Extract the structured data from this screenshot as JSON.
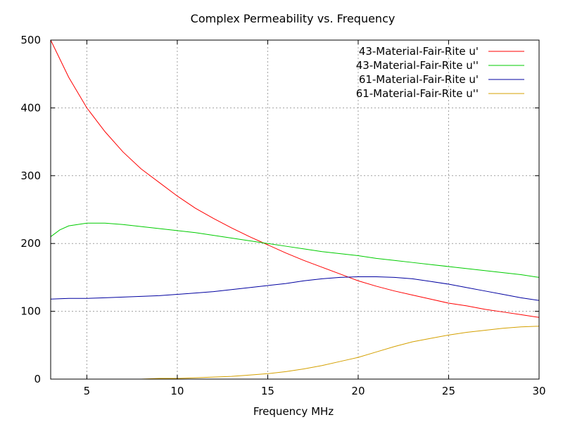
{
  "chart_data": {
    "type": "line",
    "title": "Complex Permeability vs. Frequency",
    "xlabel": "Frequency MHz",
    "ylabel": "",
    "xlim": [
      3,
      30
    ],
    "ylim": [
      0,
      500
    ],
    "xticks": [
      5,
      10,
      15,
      20,
      25,
      30
    ],
    "yticks": [
      0,
      100,
      200,
      300,
      400,
      500
    ],
    "grid": true,
    "legend_position": "top-right",
    "series": [
      {
        "name": "43-Material-Fair-Rite u'",
        "color": "#ff0000",
        "x": [
          3,
          4,
          5,
          6,
          7,
          8,
          9,
          10,
          11,
          12,
          13,
          14,
          15,
          16,
          17,
          18,
          19,
          20,
          21,
          22,
          23,
          24,
          25,
          26,
          27,
          28,
          29,
          30
        ],
        "y": [
          500,
          445,
          400,
          365,
          335,
          310,
          290,
          270,
          252,
          237,
          223,
          210,
          198,
          186,
          175,
          165,
          155,
          145,
          137,
          130,
          124,
          118,
          112,
          108,
          103,
          99,
          95,
          91
        ]
      },
      {
        "name": "43-Material-Fair-Rite u''",
        "color": "#00cc00",
        "x": [
          3,
          3.5,
          4,
          5,
          6,
          7,
          8,
          9,
          10,
          11,
          12,
          13,
          14,
          15,
          16,
          17,
          18,
          19,
          20,
          21,
          22,
          23,
          24,
          25,
          26,
          27,
          28,
          29,
          30
        ],
        "y": [
          210,
          220,
          226,
          230,
          230,
          228,
          225,
          222,
          219,
          216,
          212,
          208,
          204,
          200,
          196,
          192,
          188,
          185,
          182,
          178,
          175,
          172,
          169,
          166,
          163,
          160,
          157,
          154,
          150
        ]
      },
      {
        "name": "61-Material-Fair-Rite u'",
        "color": "#0000a0",
        "x": [
          3,
          4,
          5,
          6,
          7,
          8,
          9,
          10,
          11,
          12,
          13,
          14,
          15,
          16,
          17,
          18,
          19,
          20,
          21,
          22,
          23,
          24,
          25,
          26,
          27,
          28,
          29,
          30
        ],
        "y": [
          118,
          119,
          119,
          120,
          121,
          122,
          123,
          125,
          127,
          129,
          132,
          135,
          138,
          141,
          145,
          148,
          150,
          151,
          151,
          150,
          148,
          144,
          140,
          135,
          130,
          125,
          120,
          116
        ]
      },
      {
        "name": "61-Material-Fair-Rite u''",
        "color": "#d4a000",
        "x": [
          3,
          4,
          5,
          6,
          7,
          8,
          9,
          10,
          11,
          12,
          13,
          14,
          15,
          16,
          17,
          18,
          19,
          20,
          21,
          22,
          23,
          24,
          25,
          26,
          27,
          28,
          29,
          30
        ],
        "y": [
          0,
          0,
          0,
          0,
          0,
          0,
          1,
          1,
          2,
          3,
          4,
          6,
          8,
          11,
          15,
          20,
          26,
          32,
          40,
          48,
          55,
          60,
          65,
          69,
          72,
          75,
          77,
          78
        ]
      }
    ]
  }
}
